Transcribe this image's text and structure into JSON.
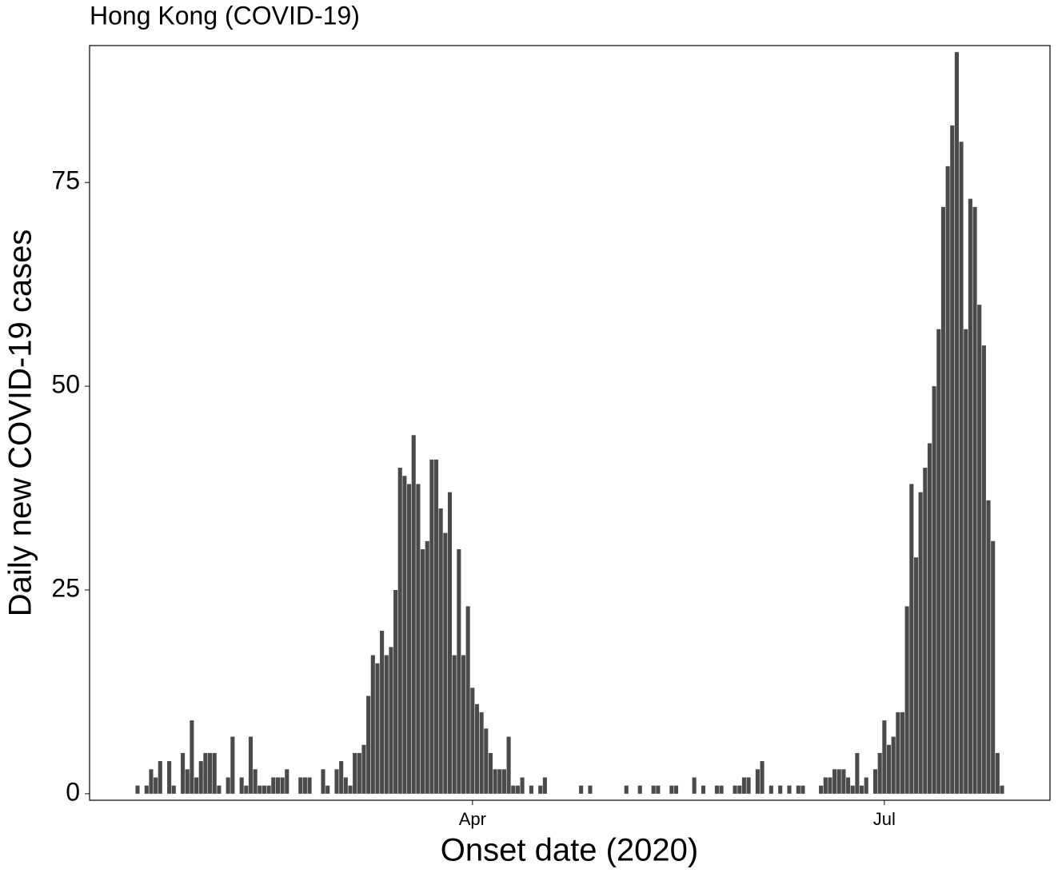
{
  "chart_data": {
    "type": "bar",
    "title": "Hong Kong (COVID-19)",
    "x_label": "Onset date (2020)",
    "y_label": "Daily new COVID-19 cases",
    "color": "#4a4a4a",
    "grid": false,
    "ylim": [
      -0.8,
      91.8
    ],
    "yticks": [
      0,
      25,
      50,
      75
    ],
    "categories": [
      null,
      null,
      null,
      null,
      null,
      null,
      null,
      null,
      null,
      null,
      null,
      null,
      null,
      null,
      null,
      null,
      null,
      null,
      null,
      null,
      null,
      null,
      null,
      null,
      null,
      null,
      null,
      null,
      null,
      null,
      null,
      null,
      null,
      null,
      null,
      null,
      null,
      null,
      null,
      null,
      null,
      null,
      null,
      null,
      null,
      null,
      null,
      null,
      null,
      null,
      null,
      null,
      null,
      null,
      null,
      null,
      null,
      null,
      null,
      null,
      null,
      null,
      null,
      null,
      null,
      null,
      null,
      null,
      null,
      null,
      null,
      null,
      null,
      null,
      "Apr",
      null,
      null,
      null,
      null,
      null,
      null,
      null,
      null,
      null,
      null,
      null,
      null,
      null,
      null,
      null,
      null,
      null,
      null,
      null,
      null,
      null,
      null,
      null,
      null,
      null,
      null,
      null,
      null,
      null,
      null,
      null,
      null,
      null,
      null,
      null,
      null,
      null,
      null,
      null,
      null,
      null,
      null,
      null,
      null,
      null,
      null,
      null,
      null,
      null,
      null,
      null,
      null,
      null,
      null,
      null,
      null,
      null,
      null,
      null,
      null,
      null,
      null,
      null,
      null,
      null,
      null,
      null,
      null,
      null,
      null,
      null,
      null,
      null,
      null,
      null,
      null,
      null,
      null,
      null,
      null,
      null,
      null,
      null,
      null,
      null,
      null,
      null,
      null,
      null,
      null,
      "Jul",
      null,
      null,
      null,
      null,
      null,
      null,
      null,
      null,
      null,
      null,
      null,
      null,
      null,
      null,
      null,
      null,
      null,
      null,
      null,
      null,
      null,
      null,
      null,
      null,
      null,
      null
    ],
    "values": [
      1,
      0,
      1,
      3,
      2,
      4,
      0,
      4,
      1,
      0,
      5,
      3,
      9,
      2,
      4,
      5,
      5,
      5,
      1,
      0,
      2,
      7,
      0,
      2,
      1,
      7,
      3,
      1,
      1,
      1,
      2,
      2,
      2,
      3,
      0,
      0,
      2,
      2,
      2,
      0,
      0,
      3,
      1,
      0,
      3,
      4,
      2,
      1,
      5,
      5,
      6,
      12,
      17,
      16,
      20,
      17,
      18,
      25,
      40,
      39,
      38,
      44,
      38,
      30,
      31,
      41,
      41,
      35,
      32,
      37,
      17,
      30,
      17,
      23,
      13,
      11,
      10,
      8,
      5,
      3,
      3,
      3,
      7,
      1,
      1,
      2,
      0,
      1,
      0,
      1,
      2,
      0,
      0,
      0,
      0,
      0,
      0,
      0,
      1,
      0,
      1,
      0,
      0,
      0,
      0,
      0,
      0,
      0,
      1,
      0,
      0,
      1,
      0,
      0,
      1,
      1,
      0,
      0,
      1,
      1,
      0,
      0,
      0,
      2,
      0,
      1,
      0,
      0,
      1,
      1,
      0,
      0,
      1,
      1,
      2,
      2,
      0,
      3,
      4,
      0,
      1,
      0,
      1,
      0,
      1,
      0,
      1,
      1,
      0,
      0,
      0,
      1,
      2,
      2,
      3,
      3,
      3,
      2,
      1,
      5,
      1,
      2,
      0,
      3,
      5,
      9,
      6,
      7,
      10,
      10,
      23,
      38,
      29,
      37,
      40,
      43,
      50,
      57,
      72,
      77,
      82,
      91,
      80,
      57,
      73,
      72,
      60,
      55,
      36,
      31,
      5,
      1
    ]
  }
}
